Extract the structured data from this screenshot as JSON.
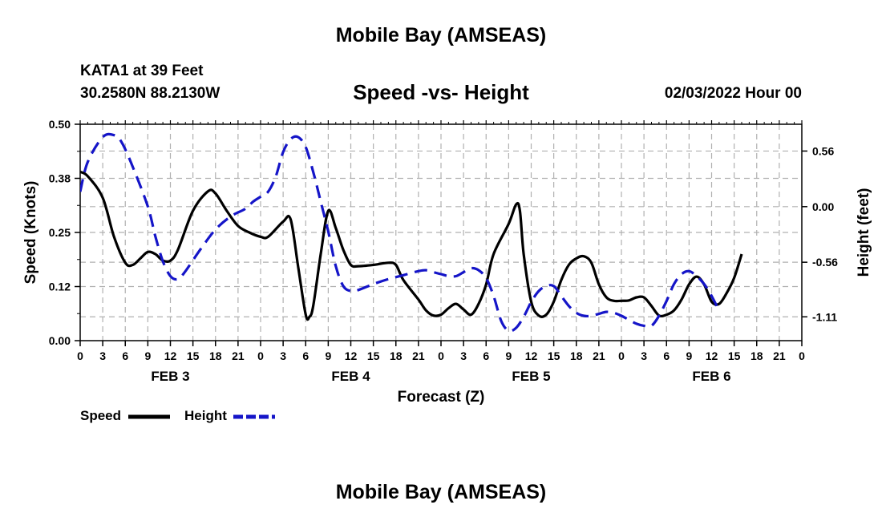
{
  "header": {
    "title": "Mobile Bay (AMSEAS)",
    "station": "KATA1 at 39 Feet",
    "coords": "30.2580N  88.2130W",
    "subtitle": "Speed -vs- Height",
    "datetime": "02/03/2022 Hour 00"
  },
  "footer": {
    "title": "Mobile Bay (AMSEAS)"
  },
  "legend": {
    "speed_label": "Speed",
    "height_label": "Height"
  },
  "colors": {
    "speed": "#000000",
    "height": "#1515c8",
    "grid": "#b0b0b0"
  },
  "chart_data": {
    "type": "line",
    "title": "Speed -vs- Height",
    "xlabel": "Forecast (Z)",
    "ylabel_left": "Speed (Knots)",
    "ylabel_right": "Height (feet)",
    "x_range_hours": [
      0,
      96
    ],
    "ylim_left": [
      0,
      0.5
    ],
    "ylim_right": [
      -1.35,
      0.83
    ],
    "left_ticks": [
      "0.00",
      "0.12",
      "0.25",
      "0.38",
      "0.50"
    ],
    "left_tick_values": [
      0,
      0.125,
      0.25,
      0.375,
      0.5
    ],
    "right_ticks": [
      "-1.11",
      "-0.56",
      "0.00",
      "0.56"
    ],
    "right_tick_values": [
      -1.11,
      -0.56,
      0.0,
      0.56
    ],
    "x_tick_labels": [
      "0",
      "3",
      "6",
      "9",
      "12",
      "15",
      "18",
      "21",
      "0",
      "3",
      "6",
      "9",
      "12",
      "15",
      "18",
      "21",
      "0",
      "3",
      "6",
      "9",
      "12",
      "15",
      "18",
      "21",
      "0",
      "3",
      "6",
      "9",
      "12",
      "15",
      "18",
      "21",
      "0"
    ],
    "day_labels": [
      {
        "label": "FEB 3",
        "hour": 12
      },
      {
        "label": "FEB 4",
        "hour": 36
      },
      {
        "label": "FEB 5",
        "hour": 60
      },
      {
        "label": "FEB 6",
        "hour": 84
      }
    ],
    "series": [
      {
        "name": "Speed",
        "axis": "left",
        "style": "solid",
        "points": [
          [
            0,
            0.39
          ],
          [
            1,
            0.38
          ],
          [
            3,
            0.33
          ],
          [
            4.5,
            0.24
          ],
          [
            6,
            0.18
          ],
          [
            7,
            0.175
          ],
          [
            8,
            0.19
          ],
          [
            9,
            0.205
          ],
          [
            10,
            0.2
          ],
          [
            11,
            0.185
          ],
          [
            12,
            0.185
          ],
          [
            13,
            0.21
          ],
          [
            15,
            0.3
          ],
          [
            17,
            0.345
          ],
          [
            18,
            0.34
          ],
          [
            19.5,
            0.3
          ],
          [
            21,
            0.265
          ],
          [
            22.5,
            0.25
          ],
          [
            24,
            0.24
          ],
          [
            25,
            0.24
          ],
          [
            27,
            0.275
          ],
          [
            28,
            0.28
          ],
          [
            29,
            0.17
          ],
          [
            30,
            0.06
          ],
          [
            30.5,
            0.055
          ],
          [
            31,
            0.08
          ],
          [
            32,
            0.2
          ],
          [
            33,
            0.3
          ],
          [
            34,
            0.26
          ],
          [
            35,
            0.21
          ],
          [
            36,
            0.175
          ],
          [
            37,
            0.172
          ],
          [
            39,
            0.175
          ],
          [
            41,
            0.18
          ],
          [
            42,
            0.175
          ],
          [
            43,
            0.14
          ],
          [
            45,
            0.095
          ],
          [
            46,
            0.07
          ],
          [
            47,
            0.058
          ],
          [
            48,
            0.06
          ],
          [
            49,
            0.075
          ],
          [
            50,
            0.085
          ],
          [
            51,
            0.072
          ],
          [
            52,
            0.06
          ],
          [
            53,
            0.085
          ],
          [
            54,
            0.13
          ],
          [
            55,
            0.2
          ],
          [
            57,
            0.27
          ],
          [
            58,
            0.315
          ],
          [
            58.5,
            0.3
          ],
          [
            59,
            0.2
          ],
          [
            60,
            0.09
          ],
          [
            61,
            0.058
          ],
          [
            62,
            0.06
          ],
          [
            63,
            0.09
          ],
          [
            64,
            0.14
          ],
          [
            65,
            0.175
          ],
          [
            66,
            0.19
          ],
          [
            67,
            0.195
          ],
          [
            68,
            0.18
          ],
          [
            69,
            0.13
          ],
          [
            70,
            0.1
          ],
          [
            71,
            0.092
          ],
          [
            72,
            0.092
          ],
          [
            73,
            0.093
          ],
          [
            74,
            0.1
          ],
          [
            75,
            0.1
          ],
          [
            76,
            0.08
          ],
          [
            77,
            0.058
          ],
          [
            78,
            0.06
          ],
          [
            79,
            0.07
          ],
          [
            80,
            0.095
          ],
          [
            81,
            0.13
          ],
          [
            82,
            0.148
          ],
          [
            83,
            0.13
          ],
          [
            84,
            0.09
          ],
          [
            85,
            0.085
          ],
          [
            86,
            0.11
          ],
          [
            87,
            0.145
          ],
          [
            88,
            0.2
          ]
        ]
      },
      {
        "name": "Height",
        "axis": "right",
        "style": "dashed",
        "points": [
          [
            0,
            0.15
          ],
          [
            1,
            0.45
          ],
          [
            3,
            0.7
          ],
          [
            4.5,
            0.72
          ],
          [
            5.5,
            0.65
          ],
          [
            7,
            0.4
          ],
          [
            9,
            0.0
          ],
          [
            10,
            -0.3
          ],
          [
            11,
            -0.55
          ],
          [
            12,
            -0.7
          ],
          [
            13,
            -0.73
          ],
          [
            14,
            -0.65
          ],
          [
            16,
            -0.43
          ],
          [
            18,
            -0.23
          ],
          [
            20,
            -0.1
          ],
          [
            22,
            -0.02
          ],
          [
            23,
            0.05
          ],
          [
            24,
            0.1
          ],
          [
            25,
            0.15
          ],
          [
            26,
            0.3
          ],
          [
            27,
            0.55
          ],
          [
            28,
            0.68
          ],
          [
            29,
            0.7
          ],
          [
            30,
            0.6
          ],
          [
            31,
            0.35
          ],
          [
            32,
            0.05
          ],
          [
            33,
            -0.25
          ],
          [
            34,
            -0.6
          ],
          [
            35,
            -0.8
          ],
          [
            36,
            -0.85
          ],
          [
            37,
            -0.84
          ],
          [
            39,
            -0.78
          ],
          [
            41,
            -0.73
          ],
          [
            43,
            -0.69
          ],
          [
            45,
            -0.65
          ],
          [
            46,
            -0.64
          ],
          [
            47,
            -0.66
          ],
          [
            48,
            -0.68
          ],
          [
            49,
            -0.7
          ],
          [
            50,
            -0.7
          ],
          [
            51,
            -0.66
          ],
          [
            52,
            -0.62
          ],
          [
            53,
            -0.64
          ],
          [
            54,
            -0.72
          ],
          [
            55,
            -0.9
          ],
          [
            56,
            -1.15
          ],
          [
            57,
            -1.25
          ],
          [
            58,
            -1.22
          ],
          [
            59,
            -1.11
          ],
          [
            60,
            -0.96
          ],
          [
            61,
            -0.85
          ],
          [
            62,
            -0.8
          ],
          [
            63,
            -0.8
          ],
          [
            64,
            -0.9
          ],
          [
            65,
            -1.0
          ],
          [
            66,
            -1.07
          ],
          [
            67,
            -1.1
          ],
          [
            68,
            -1.1
          ],
          [
            69,
            -1.08
          ],
          [
            70,
            -1.06
          ],
          [
            71,
            -1.07
          ],
          [
            72,
            -1.1
          ],
          [
            73,
            -1.14
          ],
          [
            74,
            -1.18
          ],
          [
            75,
            -1.2
          ],
          [
            76,
            -1.2
          ],
          [
            77,
            -1.1
          ],
          [
            78,
            -0.95
          ],
          [
            79,
            -0.78
          ],
          [
            80,
            -0.68
          ],
          [
            81,
            -0.65
          ],
          [
            82,
            -0.7
          ],
          [
            83,
            -0.78
          ],
          [
            84,
            -0.9
          ],
          [
            85,
            -1.05
          ]
        ]
      }
    ]
  }
}
